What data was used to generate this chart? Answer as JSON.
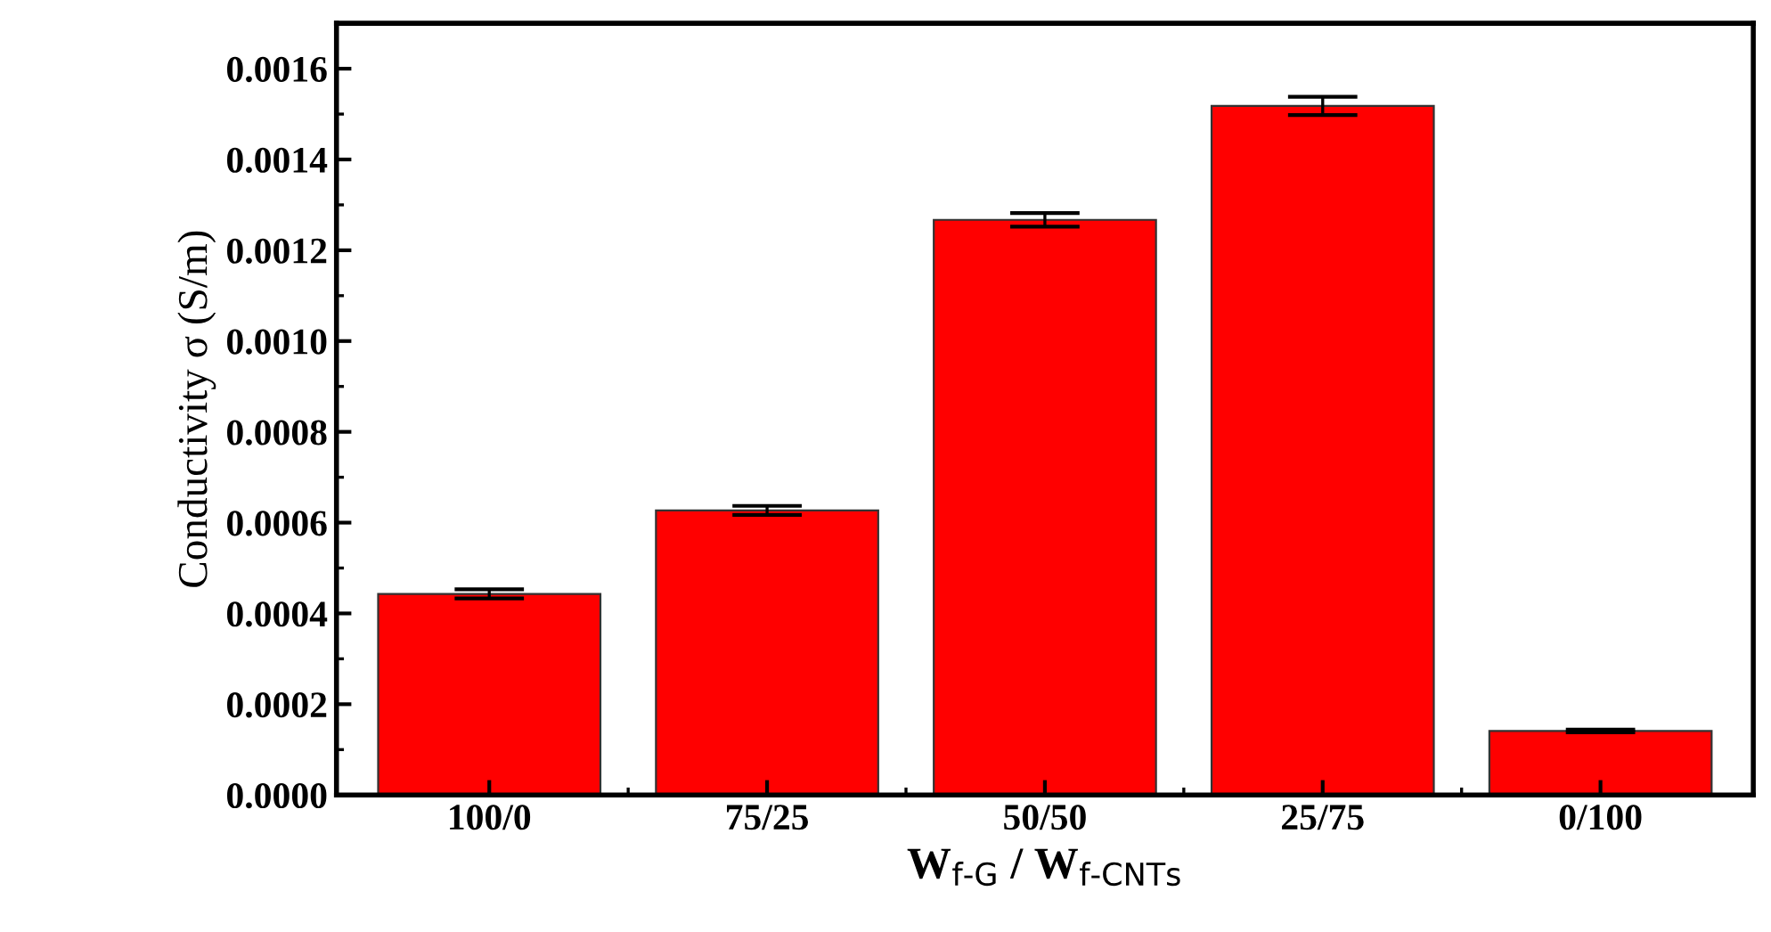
{
  "chart_data": {
    "type": "bar",
    "xlabel": "W$_{f-G}$ / W$_{f-CNTs}$",
    "ylabel": "Conductivity σ (S/m)",
    "categories": [
      "100/0",
      "75/25",
      "50/50",
      "25/75",
      "0/100"
    ],
    "values": [
      0.000443,
      0.000627,
      0.001267,
      0.001518,
      0.000141
    ],
    "errors": [
      1e-05,
      1e-05,
      1.5e-05,
      2e-05,
      3e-06
    ],
    "color": "#ff0000",
    "ylim": [
      0,
      0.0017
    ],
    "yticks": [
      {
        "value": 0,
        "label": "0.0000"
      },
      {
        "value": 0.0002,
        "label": "0.0002"
      },
      {
        "value": 0.0004,
        "label": "0.0004"
      },
      {
        "value": 0.0006,
        "label": "0.0006"
      },
      {
        "value": 0.0008,
        "label": "0.0008"
      },
      {
        "value": 0.001,
        "label": "0.0010"
      },
      {
        "value": 0.0012,
        "label": "0.0012"
      },
      {
        "value": 0.0014,
        "label": "0.0014"
      },
      {
        "value": 0.0016,
        "label": "0.0016"
      }
    ],
    "grid": false
  }
}
